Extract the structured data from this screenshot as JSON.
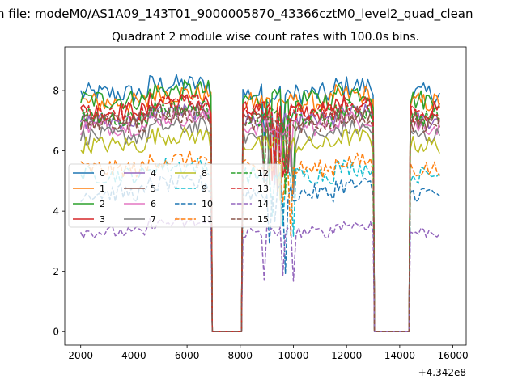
{
  "figure": {
    "suptitle": "n file: modeM0/AS1A09_143T01_9000005870_43366cztM0_level2_quad_clean",
    "title": "Quadrant 2 module wise count rates with 100.0s bins."
  },
  "chart_data": {
    "type": "line",
    "title": "Quadrant 2 module wise count rates with 100.0s bins.",
    "xlabel": "",
    "ylabel": "",
    "x_offset_label": "+4.342e8",
    "x_ticks": [
      "2000",
      "4000",
      "6000",
      "8000",
      "10000",
      "12000",
      "14000",
      "16000"
    ],
    "y_ticks": [
      "0",
      "2",
      "4",
      "6",
      "8"
    ],
    "xlim": [
      1400,
      16500
    ],
    "ylim": [
      -0.45,
      9.45
    ],
    "grid": false,
    "legend": {
      "placement": "center-left",
      "columns": 4
    },
    "gaps": [
      [
        6950,
        8050
      ],
      [
        13050,
        14350
      ]
    ],
    "segments": [
      [
        2000,
        6900
      ],
      [
        8100,
        13000
      ],
      [
        14400,
        15500
      ]
    ],
    "series": [
      {
        "name": "0",
        "color": "#1f77b4",
        "dash": "solid",
        "level": 7.9,
        "noise": 0.35
      },
      {
        "name": "1",
        "color": "#ff7f0e",
        "dash": "solid",
        "level": 7.6,
        "noise": 0.35
      },
      {
        "name": "2",
        "color": "#2ca02c",
        "dash": "solid",
        "level": 7.7,
        "noise": 0.35
      },
      {
        "name": "3",
        "color": "#d62728",
        "dash": "solid",
        "level": 7.3,
        "noise": 0.35
      },
      {
        "name": "4",
        "color": "#9467bd",
        "dash": "solid",
        "level": 7.0,
        "noise": 0.3
      },
      {
        "name": "5",
        "color": "#8c564b",
        "dash": "solid",
        "level": 7.0,
        "noise": 0.3
      },
      {
        "name": "6",
        "color": "#e377c2",
        "dash": "solid",
        "level": 6.8,
        "noise": 0.3
      },
      {
        "name": "7",
        "color": "#7f7f7f",
        "dash": "solid",
        "level": 6.5,
        "noise": 0.3
      },
      {
        "name": "8",
        "color": "#bcbd22",
        "dash": "solid",
        "level": 6.2,
        "noise": 0.3
      },
      {
        "name": "9",
        "color": "#17becf",
        "dash": "dashed",
        "level": 5.2,
        "noise": 0.3
      },
      {
        "name": "10",
        "color": "#1f77b4",
        "dash": "dashed",
        "level": 4.6,
        "noise": 0.3
      },
      {
        "name": "11",
        "color": "#ff7f0e",
        "dash": "dashed",
        "level": 5.4,
        "noise": 0.3
      },
      {
        "name": "12",
        "color": "#2ca02c",
        "dash": "dashed",
        "level": 7.1,
        "noise": 0.3
      },
      {
        "name": "13",
        "color": "#d62728",
        "dash": "dashed",
        "level": 7.3,
        "noise": 0.3
      },
      {
        "name": "14",
        "color": "#9467bd",
        "dash": "dashed",
        "level": 3.3,
        "noise": 0.2
      },
      {
        "name": "15",
        "color": "#8c564b",
        "dash": "dashed",
        "level": 6.9,
        "noise": 0.3
      }
    ]
  }
}
